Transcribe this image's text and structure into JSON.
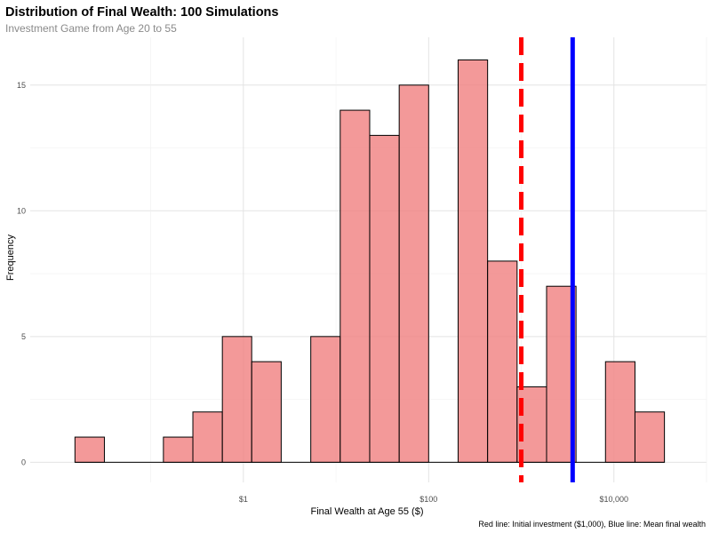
{
  "chart_data": {
    "type": "bar",
    "title": "Distribution of Final Wealth: 100 Simulations",
    "subtitle": "Investment Game from Age 20 to 55",
    "xlabel": "Final Wealth at Age 55 ($)",
    "ylabel": "Frequency",
    "caption": "Red line: Initial investment ($1,000), Blue line: Mean final wealth",
    "x_scale": "log10",
    "xlim": [
      0.005,
      100000
    ],
    "ylim": [
      -0.8,
      16.9
    ],
    "x_ticks": [
      {
        "value": 1,
        "label": "$1"
      },
      {
        "value": 100,
        "label": "$100"
      },
      {
        "value": 10000,
        "label": "$10,000"
      }
    ],
    "y_ticks": [
      {
        "value": 0,
        "label": "0"
      },
      {
        "value": 5,
        "label": "5"
      },
      {
        "value": 10,
        "label": "10"
      },
      {
        "value": 15,
        "label": "15"
      }
    ],
    "bins": [
      {
        "x0": 0.0152,
        "x1": 0.0316,
        "count": 1
      },
      {
        "x0": 0.0316,
        "x1": 0.0658,
        "count": 0
      },
      {
        "x0": 0.0658,
        "x1": 0.137,
        "count": 0
      },
      {
        "x0": 0.137,
        "x1": 0.285,
        "count": 1
      },
      {
        "x0": 0.285,
        "x1": 0.593,
        "count": 2
      },
      {
        "x0": 0.593,
        "x1": 1.23,
        "count": 5
      },
      {
        "x0": 1.23,
        "x1": 2.56,
        "count": 4
      },
      {
        "x0": 2.56,
        "x1": 5.34,
        "count": 0
      },
      {
        "x0": 5.34,
        "x1": 11.1,
        "count": 5
      },
      {
        "x0": 11.1,
        "x1": 23.1,
        "count": 14
      },
      {
        "x0": 23.1,
        "x1": 48.1,
        "count": 13
      },
      {
        "x0": 48.1,
        "x1": 100,
        "count": 15
      },
      {
        "x0": 100,
        "x1": 208,
        "count": 0
      },
      {
        "x0": 208,
        "x1": 433,
        "count": 16
      },
      {
        "x0": 433,
        "x1": 901,
        "count": 8
      },
      {
        "x0": 901,
        "x1": 1875,
        "count": 3
      },
      {
        "x0": 1875,
        "x1": 3900,
        "count": 7
      },
      {
        "x0": 3900,
        "x1": 8110,
        "count": 0
      },
      {
        "x0": 8110,
        "x1": 16880,
        "count": 4
      },
      {
        "x0": 16880,
        "x1": 35110,
        "count": 2
      }
    ],
    "reference_lines": [
      {
        "name": "Initial investment ($1,000)",
        "value": 1000,
        "color": "#ff0000",
        "style": "dashed"
      },
      {
        "name": "Mean final wealth",
        "value": 3585,
        "color": "#0000ff",
        "style": "solid"
      }
    ],
    "bar_fill": "#f08080",
    "bar_opacity": 0.8,
    "bar_stroke": "#000000",
    "grid": true,
    "legend": "none"
  }
}
